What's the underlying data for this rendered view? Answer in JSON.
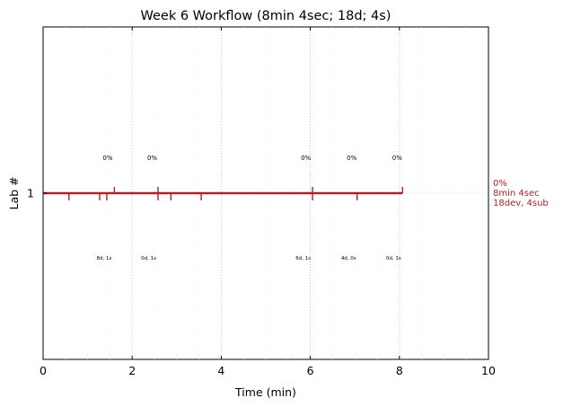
{
  "chart_data": {
    "type": "line",
    "title": "Week 6 Workflow (8min 4sec; 18d; 4s)",
    "xlabel": "Time (min)",
    "ylabel": "Lab #",
    "xlim": [
      0,
      10
    ],
    "x_ticks": [
      "0",
      "2",
      "4",
      "6",
      "8",
      "10"
    ],
    "y_ticks": [
      "1"
    ],
    "grid": "vertical dotted",
    "color": "#b22222",
    "series": [
      {
        "lab": "1",
        "x": [
          0,
          8.07
        ],
        "y": [
          1,
          1
        ],
        "up_ticks": [
          1.6,
          2.58,
          6.05,
          8.07
        ],
        "down_ticks": [
          0.58,
          1.27,
          1.43,
          2.58,
          2.87,
          3.55,
          6.05,
          7.05
        ],
        "percent_labels": [
          {
            "x": 1.45,
            "text": "0%"
          },
          {
            "x": 2.45,
            "text": "0%"
          },
          {
            "x": 5.9,
            "text": "0%"
          },
          {
            "x": 6.93,
            "text": "0%"
          },
          {
            "x": 7.95,
            "text": "0%"
          }
        ],
        "count_labels": [
          {
            "x": 1.37,
            "text": "8d, 1s"
          },
          {
            "x": 2.37,
            "text": "0d, 1s"
          },
          {
            "x": 5.84,
            "text": "6d, 1s"
          },
          {
            "x": 6.86,
            "text": "4d, 0s"
          },
          {
            "x": 7.87,
            "text": "0d, 1s"
          }
        ],
        "right_label": [
          "0%",
          "8min 4sec",
          "18dev, 4sub"
        ]
      }
    ]
  }
}
